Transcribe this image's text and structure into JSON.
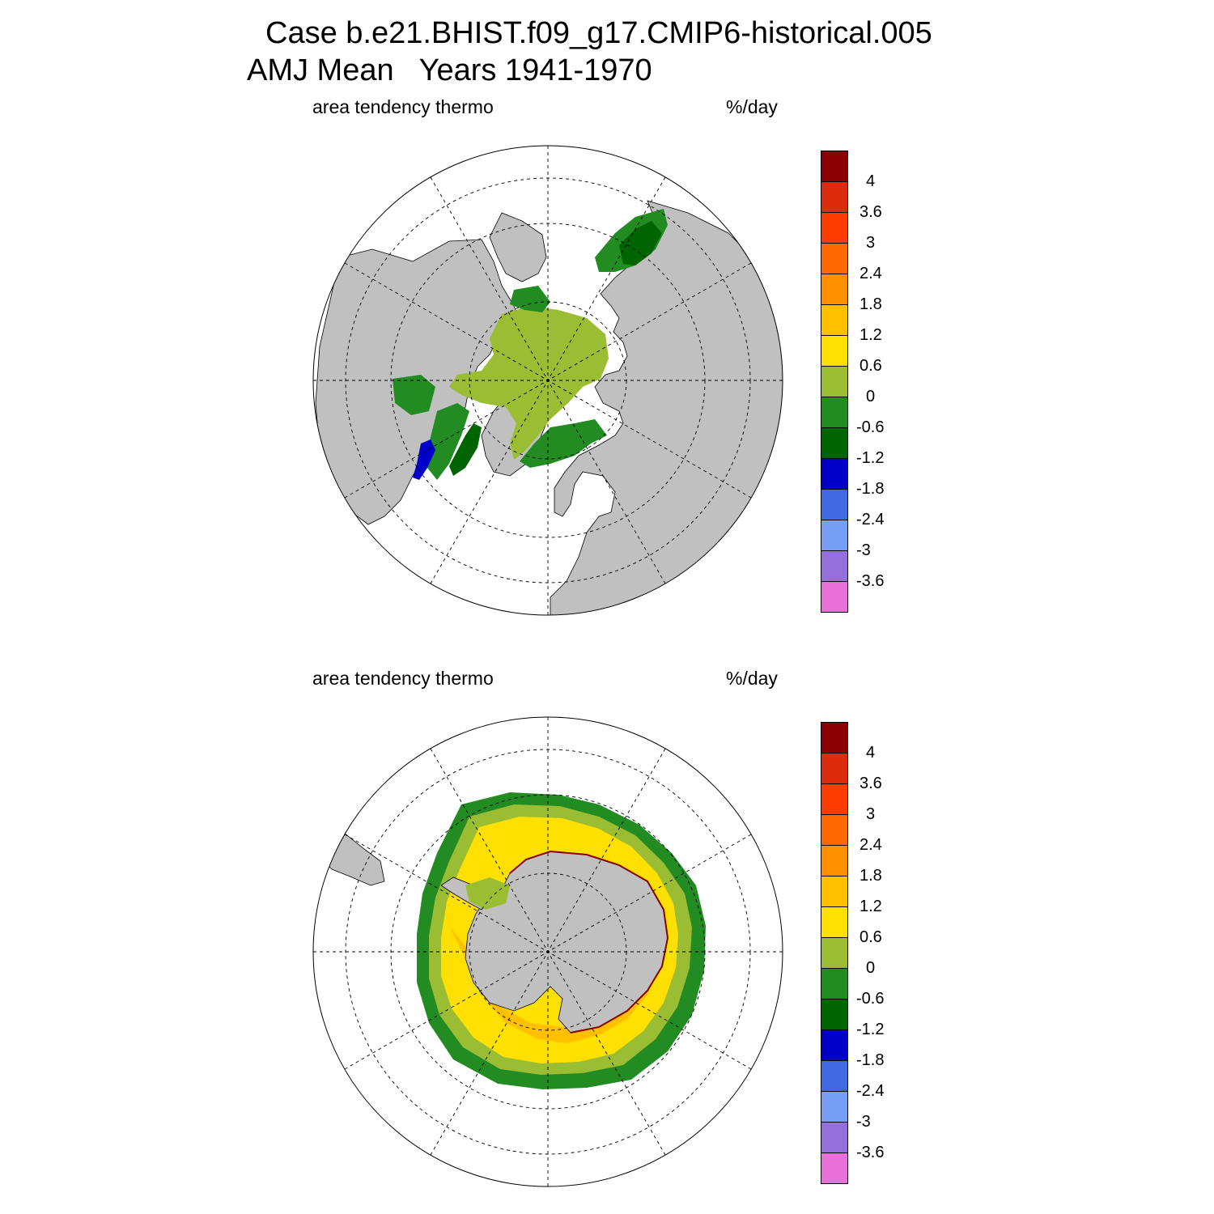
{
  "title": {
    "line1": "Case b.e21.BHIST.f09_g17.CMIP6-historical.005",
    "line2": "AMJ Mean   Years 1941-1970"
  },
  "panels": [
    {
      "hemisphere": "north",
      "variable_label": "area tendency thermo",
      "units_label": "%/day"
    },
    {
      "hemisphere": "south",
      "variable_label": "area tendency thermo",
      "units_label": "%/day"
    }
  ],
  "colorbar": {
    "ticks": [
      "4",
      "3.6",
      "3",
      "2.4",
      "1.8",
      "1.2",
      "0.6",
      "0",
      "-0.6",
      "-1.2",
      "-1.8",
      "-2.4",
      "-3",
      "-3.6"
    ],
    "colors": [
      "#8b0000",
      "#dd2b0e",
      "#ff3c00",
      "#ff6a00",
      "#ff9000",
      "#ffc000",
      "#ffe000",
      "#9abd33",
      "#228b22",
      "#006400",
      "#0000c8",
      "#4169e1",
      "#779ff5",
      "#9370db",
      "#e870d8"
    ]
  },
  "map_colors": {
    "land": "#c0c0c0",
    "ocean": "#ffffff",
    "grid": "#000000"
  }
}
